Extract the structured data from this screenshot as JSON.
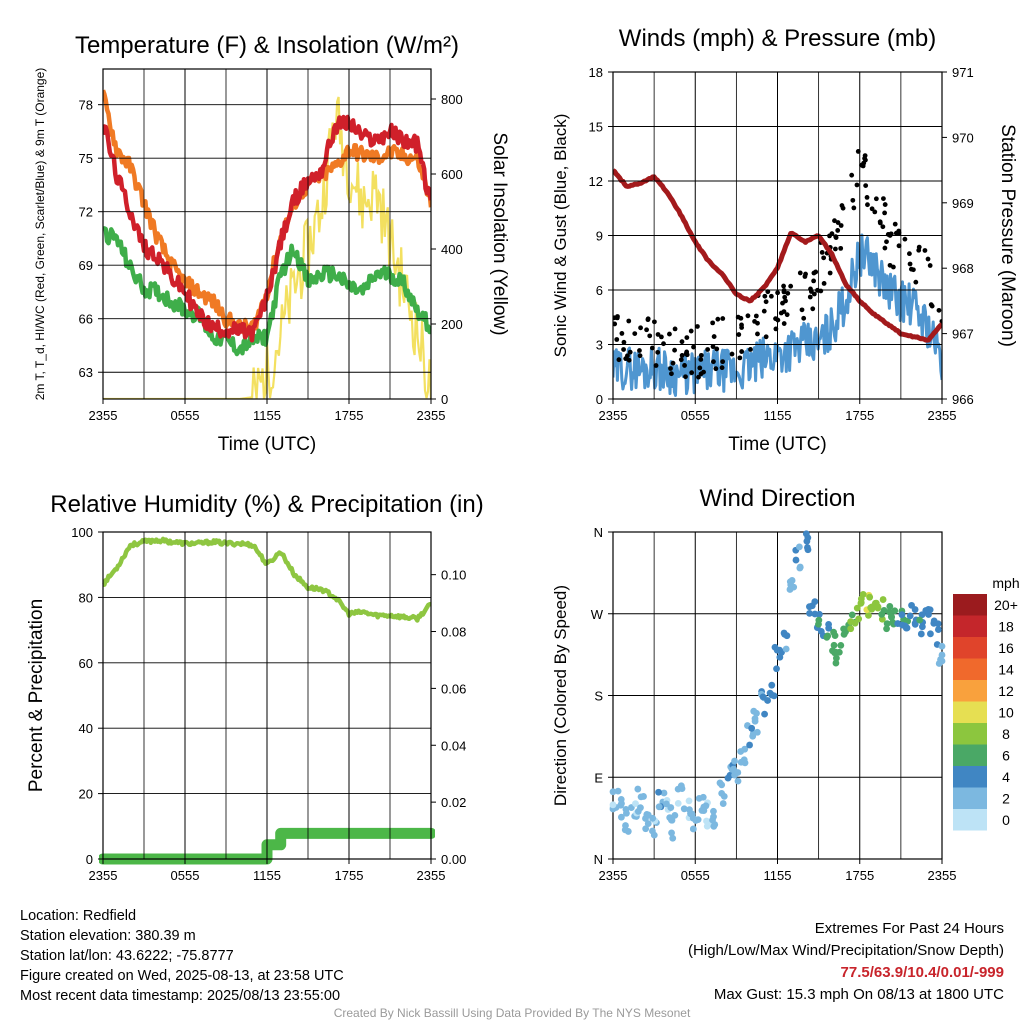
{
  "colors": {
    "temp": "#d0202a",
    "heat_index": "#b81c24",
    "dewpoint": "#3fae4a",
    "temp9m": "#f07a24",
    "solar": "#f3e060",
    "wind": "#4f96d0",
    "gust": "#000000",
    "pressure": "#a31a1c",
    "rh": "#8ec641",
    "precip": "#4cb748"
  },
  "chart_data": [
    {
      "type": "line",
      "title": "Temperature (F) & Insolation (W/m²)",
      "xlabel": "Time (UTC)",
      "ylabel": "2m T, T_d, HI/WC (Red, Green, Scarlet/Blue) & 9m T (Orange)",
      "y2label": "Solar Insolation (Yellow)",
      "x_ticks": [
        "2355",
        "0555",
        "1155",
        "1755",
        "2355"
      ],
      "y_ticks": [
        63,
        66,
        69,
        72,
        75,
        78
      ],
      "y2_ticks": [
        0,
        200,
        400,
        600,
        800
      ],
      "ylim": [
        61.5,
        80
      ],
      "y2lim": [
        0,
        880
      ],
      "x": [
        0,
        1,
        2,
        3,
        4,
        5,
        6,
        7,
        8,
        9,
        10,
        11,
        12,
        13,
        14,
        15,
        16,
        17,
        18,
        19,
        20,
        21,
        22,
        23,
        24
      ],
      "series": [
        {
          "key": "temp9m",
          "values": [
            78.5,
            75.5,
            74.5,
            72.5,
            70.5,
            69,
            68,
            67.5,
            67,
            66,
            65.5,
            65.5,
            67.5,
            70.5,
            72.5,
            73.5,
            74,
            74.5,
            75.5,
            75.2,
            75,
            75.3,
            75.1,
            75,
            72.5
          ]
        },
        {
          "key": "temp",
          "values": [
            77,
            74,
            72,
            70,
            69.5,
            68.3,
            67.5,
            66.2,
            65.5,
            65.4,
            65.3,
            65.2,
            67.2,
            70.3,
            72.7,
            73.7,
            74.3,
            76.8,
            77,
            76.2,
            76,
            76.5,
            76,
            75.8,
            72.3
          ]
        },
        {
          "key": "dewpoint",
          "values": [
            70.8,
            70.5,
            68.8,
            67.7,
            67.5,
            67,
            66.5,
            66.2,
            65,
            64.8,
            64.3,
            64.8,
            65,
            68.5,
            70,
            68,
            68.5,
            68.5,
            67.8,
            67.5,
            68.5,
            68.5,
            68,
            66.5,
            65.5
          ]
        },
        {
          "key": "solar",
          "values": [
            0,
            0,
            0,
            0,
            0,
            0,
            0,
            0,
            0,
            0,
            0,
            5,
            70,
            170,
            300,
            400,
            520,
            760,
            620,
            520,
            560,
            420,
            300,
            180,
            20
          ]
        }
      ]
    },
    {
      "type": "scatter",
      "title": "Winds (mph) & Pressure (mb)",
      "xlabel": "Time (UTC)",
      "ylabel": "Sonic Wind & Gust (Blue, Black)",
      "y2label": "Station Pressure (Maroon)",
      "x_ticks": [
        "2355",
        "0555",
        "1155",
        "1755",
        "2355"
      ],
      "y_ticks": [
        0,
        3,
        6,
        9,
        12,
        15,
        18
      ],
      "y2_ticks": [
        966,
        967,
        968,
        969,
        970,
        971
      ],
      "ylim": [
        0,
        18
      ],
      "y2lim": [
        966,
        971
      ],
      "x": [
        0,
        1,
        2,
        3,
        4,
        5,
        6,
        7,
        8,
        9,
        10,
        11,
        12,
        13,
        14,
        15,
        16,
        17,
        18,
        19,
        20,
        21,
        22,
        23,
        24
      ],
      "series": [
        {
          "key": "wind",
          "values": [
            1.5,
            1.8,
            1.6,
            1.8,
            1.5,
            1.3,
            1.4,
            1.5,
            1.6,
            1.5,
            1.8,
            2.2,
            2.5,
            2.8,
            3,
            3,
            4,
            5.5,
            8,
            7.5,
            6,
            5.5,
            5,
            4,
            2
          ]
        },
        {
          "key": "gust",
          "values": [
            3,
            3.5,
            3.5,
            3.2,
            3,
            2.5,
            2.5,
            2.8,
            3,
            3,
            4,
            4.5,
            5,
            5.5,
            5.5,
            7,
            8,
            10,
            13,
            11.5,
            9,
            8,
            7.5,
            6.5,
            4
          ]
        },
        {
          "key": "pressure",
          "values": [
            969.5,
            969.25,
            969.3,
            969.4,
            969.15,
            968.8,
            968.4,
            968.1,
            967.9,
            967.6,
            967.5,
            967.7,
            968,
            968.55,
            968.4,
            968.5,
            968.2,
            967.75,
            967.5,
            967.3,
            967.15,
            967,
            966.95,
            966.9,
            967.15
          ]
        }
      ]
    },
    {
      "type": "line",
      "title": "Relative Humidity (%) & Precipitation (in)",
      "ylabel": "Percent & Precipitation",
      "x_ticks": [
        "2355",
        "0555",
        "1155",
        "1755",
        "2355"
      ],
      "y_ticks": [
        0,
        20,
        40,
        60,
        80,
        100
      ],
      "y2_ticks": [
        "0.00",
        "0.02",
        "0.04",
        "0.06",
        "0.08",
        "0.10"
      ],
      "ylim": [
        0,
        100
      ],
      "y2lim": [
        0,
        0.115
      ],
      "x": [
        0,
        1,
        2,
        3,
        4,
        5,
        6,
        7,
        8,
        9,
        10,
        11,
        12,
        13,
        14,
        15,
        16,
        17,
        18,
        19,
        20,
        21,
        22,
        23,
        24
      ],
      "series": [
        {
          "key": "rh",
          "values": [
            84,
            89,
            96,
            97,
            97.5,
            97,
            96.5,
            96.5,
            97,
            96.5,
            96.5,
            96,
            90,
            94,
            87,
            83,
            82.5,
            80,
            75,
            75.5,
            74.5,
            74.5,
            74,
            73.5,
            78
          ]
        },
        {
          "key": "precip",
          "values": [
            0,
            0,
            0,
            0,
            0,
            0,
            0,
            0,
            0,
            0,
            0,
            0,
            0.005,
            0.009,
            0.009,
            0.009,
            0.009,
            0.009,
            0.009,
            0.009,
            0.009,
            0.009,
            0.009,
            0.009,
            0.009
          ]
        }
      ]
    },
    {
      "type": "scatter",
      "title": "Wind Direction",
      "ylabel": "Direction (Colored By Speed)",
      "x_ticks": [
        "2355",
        "0555",
        "1155",
        "1755",
        "2355"
      ],
      "y_ticks": [
        "N",
        "E",
        "S",
        "W",
        "N"
      ],
      "ylim": [
        0,
        360
      ],
      "x": [
        0,
        0.5,
        1,
        1.5,
        2,
        2.5,
        3,
        3.5,
        4,
        4.5,
        5,
        5.5,
        6,
        6.5,
        7,
        7.5,
        8,
        8.5,
        9,
        9.5,
        10,
        10.5,
        11,
        11.5,
        12,
        12.5,
        13,
        13.5,
        14,
        14.5,
        15,
        15.5,
        16,
        16.5,
        17,
        17.5,
        18,
        18.5,
        19,
        19.5,
        20,
        20.5,
        21,
        21.5,
        22,
        22.5,
        23,
        23.5,
        24
      ],
      "direction": [
        70,
        60,
        40,
        55,
        65,
        45,
        30,
        60,
        50,
        35,
        70,
        55,
        40,
        60,
        50,
        45,
        75,
        90,
        100,
        120,
        140,
        150,
        170,
        180,
        220,
        240,
        300,
        330,
        350,
        270,
        260,
        250,
        240,
        230,
        250,
        265,
        275,
        280,
        270,
        275,
        265,
        270,
        272,
        262,
        268,
        258,
        262,
        250,
        225
      ],
      "speed": [
        1,
        1.5,
        2,
        1,
        3,
        2,
        1.5,
        2.5,
        1,
        2,
        1.5,
        1,
        3,
        2,
        1,
        2.5,
        2,
        3,
        2,
        1.5,
        3,
        2,
        3,
        4,
        3.5,
        3,
        2.5,
        3,
        4,
        4,
        5,
        5,
        6,
        5.5,
        6,
        7,
        8,
        9,
        8,
        7,
        6,
        5.5,
        5,
        5,
        4.5,
        4.5,
        4,
        3.5,
        3
      ],
      "legend_title": "mph",
      "legend_labels": [
        "20+",
        "18",
        "16",
        "14",
        "12",
        "10",
        "8",
        "6",
        "4",
        "2",
        "0"
      ],
      "legend_colors": [
        "#9b1b1e",
        "#c4262b",
        "#e0442b",
        "#f0692c",
        "#f9a13d",
        "#e6df52",
        "#8cc63e",
        "#4aa866",
        "#4086c3",
        "#7cb8e0",
        "#bde3f6"
      ],
      "legend_placement": "right"
    }
  ],
  "footer": {
    "location": "Location: Redfield",
    "elevation": "Station elevation: 380.39 m",
    "latlon": "Station lat/lon: 43.6222; -75.8777",
    "created": "Figure created on Wed, 2025-08-13, at 23:58 UTC",
    "recent": "Most recent data timestamp: 2025/08/13 23:55:00",
    "extremes_title": "Extremes For Past 24 Hours",
    "extremes_subtitle": "(High/Low/Max Wind/Precipitation/Snow Depth)",
    "extremes_values": "77.5/63.9/10.4/0.01/-999",
    "max_gust": "Max Gust: 15.3 mph On 08/13 at 1800 UTC",
    "credit": "Created By Nick Bassill Using Data Provided By The NYS Mesonet"
  }
}
